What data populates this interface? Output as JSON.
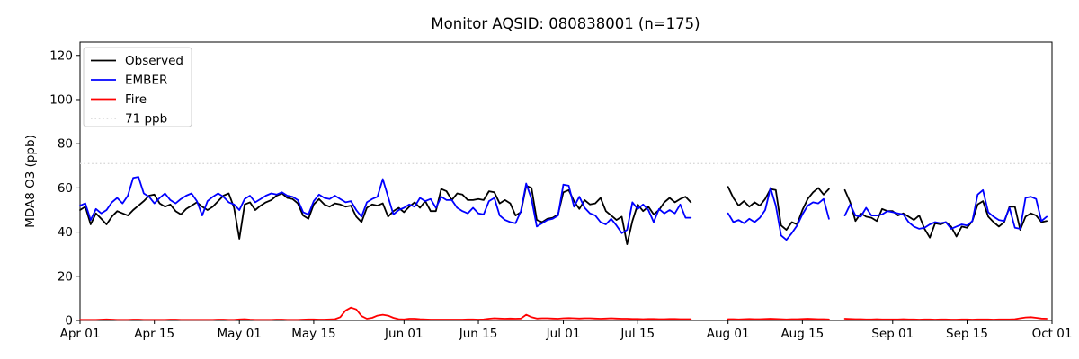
{
  "title": "Monitor AQSID: 080838001 (n=175)",
  "chart_data": {
    "type": "line",
    "title": "Monitor AQSID: 080838001 (n=175)",
    "xlabel": "",
    "ylabel": "MDA8 O3 (ppb)",
    "x_unit": "day index from Apr 01",
    "x_total_days": 183,
    "x_tick_labels": [
      "Apr 01",
      "Apr 15",
      "May 01",
      "May 15",
      "Jun 01",
      "Jun 15",
      "Jul 01",
      "Jul 15",
      "Aug 01",
      "Aug 15",
      "Sep 01",
      "Sep 15",
      "Oct 01"
    ],
    "x_tick_days": [
      0,
      14,
      30,
      44,
      61,
      75,
      91,
      105,
      122,
      136,
      153,
      167,
      183
    ],
    "y_ticks": [
      0,
      20,
      40,
      60,
      80,
      100,
      120
    ],
    "ylim": [
      0,
      126
    ],
    "grid": false,
    "legend_position": "upper-left",
    "legend": [
      {
        "label": "Observed",
        "color": "#000000",
        "style": "solid"
      },
      {
        "label": "EMBER",
        "color": "#0000ff",
        "style": "solid"
      },
      {
        "label": "Fire",
        "color": "#ff0000",
        "style": "solid"
      },
      {
        "label": "71 ppb",
        "color": "#d9d9d9",
        "style": "dotted"
      }
    ],
    "threshold": {
      "value": 71,
      "label": "71 ppb",
      "color": "#d9d9d9"
    },
    "missing_days": "Jul 26-31 and Aug 21-22 are null (183 days - 8 missing = n=175)",
    "series": [
      {
        "name": "Observed",
        "color": "#000000",
        "values": [
          50,
          51.5,
          43.5,
          48.5,
          46,
          43.5,
          47,
          49.5,
          48.5,
          47.5,
          50,
          52,
          54,
          56.5,
          57,
          53,
          51.5,
          52.5,
          49.5,
          48,
          50.5,
          52,
          53.5,
          51.5,
          50,
          51.5,
          54,
          56.5,
          57.5,
          51,
          37,
          52.5,
          53.5,
          50,
          52,
          53.5,
          54.5,
          56.5,
          57.5,
          55.5,
          55,
          53,
          47.5,
          46,
          52.5,
          55,
          52.5,
          51.5,
          53,
          52.5,
          51.5,
          52,
          47,
          44.5,
          51,
          52.5,
          52,
          53,
          47,
          49.5,
          51,
          49,
          51.5,
          53.5,
          51,
          54,
          49.5,
          49.5,
          59.5,
          58.5,
          54.5,
          57.5,
          57,
          54.5,
          54.5,
          55,
          54.5,
          58.5,
          58,
          53,
          54.5,
          53,
          47.5,
          49,
          61,
          60,
          45.5,
          44.5,
          46,
          46.5,
          48,
          58,
          59,
          54,
          50.5,
          54.5,
          52.5,
          53,
          55.5,
          49.5,
          47.5,
          45.5,
          47,
          34.5,
          45,
          52.5,
          49.5,
          51.5,
          48,
          50,
          53.5,
          55.5,
          53.5,
          55,
          56,
          53.5,
          null,
          null,
          null,
          null,
          null,
          null,
          60.5,
          55.5,
          52,
          54,
          51.5,
          53.5,
          52,
          55,
          59.5,
          59,
          43,
          41,
          44.5,
          43.5,
          50,
          55,
          58,
          60,
          57,
          59.5,
          null,
          null,
          59,
          53.5,
          45,
          48.5,
          47,
          46.5,
          45,
          50.5,
          49.5,
          49.5,
          47.5,
          48.5,
          47,
          45.5,
          47.5,
          41.5,
          37.5,
          44,
          43.5,
          44.5,
          42.5,
          38,
          42.5,
          42,
          45,
          52.5,
          54,
          47,
          44.5,
          42.5,
          44.5,
          51.5,
          51.5,
          41,
          47,
          48.5,
          47.5,
          44.5,
          45
        ]
      },
      {
        "name": "EMBER",
        "color": "#0000ff",
        "values": [
          52,
          53,
          45.5,
          50.5,
          48.5,
          50,
          53.5,
          55.5,
          53,
          56.5,
          64.5,
          65,
          57.5,
          56,
          53,
          55.5,
          57.5,
          54.5,
          53,
          55,
          56.5,
          57.5,
          54,
          47.5,
          54,
          56,
          57.5,
          56,
          53.5,
          52.5,
          50,
          55,
          56.5,
          53.5,
          55,
          56.5,
          57.5,
          57,
          58,
          56.5,
          56,
          54.5,
          49,
          48,
          54,
          57,
          55.5,
          55,
          56.5,
          55,
          53.5,
          54,
          50,
          47,
          53.5,
          55,
          56,
          64,
          56,
          48,
          50,
          51,
          52.5,
          51.5,
          55.5,
          54,
          55,
          51,
          56,
          54.5,
          54.5,
          51,
          49.5,
          48.5,
          51,
          48.5,
          48,
          54,
          55.5,
          47.5,
          45.5,
          44.5,
          44,
          49.5,
          62,
          55,
          42.5,
          44,
          45.5,
          46,
          47.5,
          61.5,
          61,
          51.5,
          56,
          51,
          48.5,
          47.5,
          44.5,
          43.5,
          46,
          43,
          39.5,
          41,
          53.5,
          50.5,
          52.5,
          50,
          44.5,
          50.5,
          48.5,
          50,
          48.5,
          52.5,
          46.5,
          46.5,
          null,
          null,
          null,
          null,
          null,
          null,
          48.5,
          44.5,
          45.5,
          44,
          46,
          44.5,
          46.5,
          50,
          60,
          52,
          38.5,
          36.5,
          39.5,
          43,
          48,
          52,
          53.5,
          53,
          55,
          46,
          null,
          null,
          47.5,
          52.5,
          47.5,
          47,
          51,
          47.5,
          47.5,
          48,
          49.5,
          49,
          48.5,
          48,
          44.5,
          42.5,
          41.5,
          42,
          43.5,
          44.5,
          44,
          44.5,
          41.5,
          42.5,
          43.5,
          43,
          45,
          57,
          59,
          49,
          47,
          45.5,
          45,
          51,
          42,
          41.5,
          55.5,
          56,
          55,
          45,
          47
        ]
      },
      {
        "name": "Fire",
        "color": "#ff0000",
        "values": [
          0.3,
          0.3,
          0.3,
          0.3,
          0.4,
          0.5,
          0.4,
          0.3,
          0.3,
          0.3,
          0.4,
          0.4,
          0.3,
          0.3,
          0.3,
          0.3,
          0.3,
          0.4,
          0.4,
          0.3,
          0.3,
          0.3,
          0.3,
          0.3,
          0.3,
          0.3,
          0.4,
          0.4,
          0.3,
          0.3,
          0.5,
          0.6,
          0.4,
          0.3,
          0.3,
          0.3,
          0.3,
          0.4,
          0.4,
          0.3,
          0.3,
          0.3,
          0.4,
          0.5,
          0.5,
          0.4,
          0.4,
          0.5,
          0.6,
          1.5,
          4.5,
          5.8,
          5,
          2,
          0.8,
          1.2,
          2.2,
          2.6,
          2.2,
          1.2,
          0.6,
          0.5,
          0.8,
          0.8,
          0.6,
          0.5,
          0.4,
          0.4,
          0.4,
          0.4,
          0.4,
          0.4,
          0.4,
          0.5,
          0.5,
          0.4,
          0.5,
          0.8,
          1,
          0.9,
          0.8,
          0.9,
          0.8,
          0.9,
          2.6,
          1.5,
          0.9,
          1,
          1,
          0.9,
          0.8,
          1,
          1.1,
          1,
          0.9,
          1,
          1,
          0.9,
          0.8,
          0.9,
          1,
          0.9,
          0.8,
          0.8,
          0.7,
          0.7,
          0.6,
          0.7,
          0.7,
          0.6,
          0.6,
          0.7,
          0.7,
          0.6,
          0.6,
          0.6,
          null,
          null,
          null,
          null,
          null,
          null,
          0.6,
          0.6,
          0.5,
          0.6,
          0.7,
          0.6,
          0.6,
          0.7,
          0.8,
          0.7,
          0.6,
          0.5,
          0.6,
          0.6,
          0.7,
          0.8,
          0.7,
          0.6,
          0.6,
          0.5,
          null,
          null,
          0.8,
          0.7,
          0.6,
          0.6,
          0.5,
          0.5,
          0.6,
          0.5,
          0.5,
          0.5,
          0.5,
          0.6,
          0.5,
          0.5,
          0.4,
          0.5,
          0.5,
          0.4,
          0.5,
          0.5,
          0.4,
          0.4,
          0.5,
          0.5,
          0.4,
          0.5,
          0.5,
          0.5,
          0.4,
          0.5,
          0.5,
          0.5,
          0.6,
          1,
          1.4,
          1.5,
          1.2,
          0.9,
          0.8
        ]
      }
    ]
  },
  "layout_colors": {
    "axis": "#000000",
    "legend_border": "#cccccc",
    "background": "#ffffff"
  }
}
